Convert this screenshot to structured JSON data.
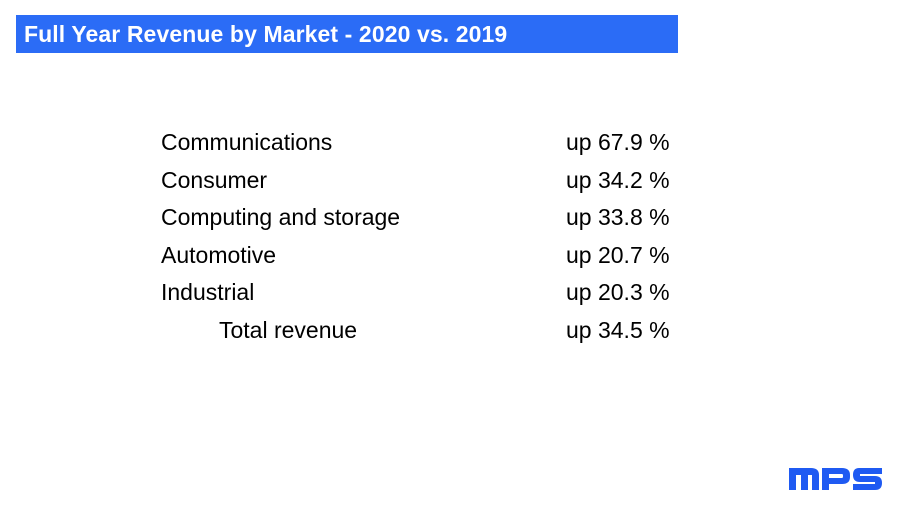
{
  "slide": {
    "title": "Full Year Revenue by Market - 2020 vs. 2019",
    "accent_color": "#2b6cf6",
    "rows": [
      {
        "market": "Communications",
        "change": "up 67.9 %"
      },
      {
        "market": "Consumer",
        "change": "up 34.2 %"
      },
      {
        "market": "Computing and storage",
        "change": "up 33.8 %"
      },
      {
        "market": "Automotive",
        "change": "up 20.7 %"
      },
      {
        "market": "Industrial",
        "change": "up 20.3 %"
      }
    ],
    "total": {
      "market": "Total revenue",
      "change": "up 34.5 %"
    },
    "logo": {
      "text": "MPS",
      "color": "#1f5af2"
    }
  }
}
